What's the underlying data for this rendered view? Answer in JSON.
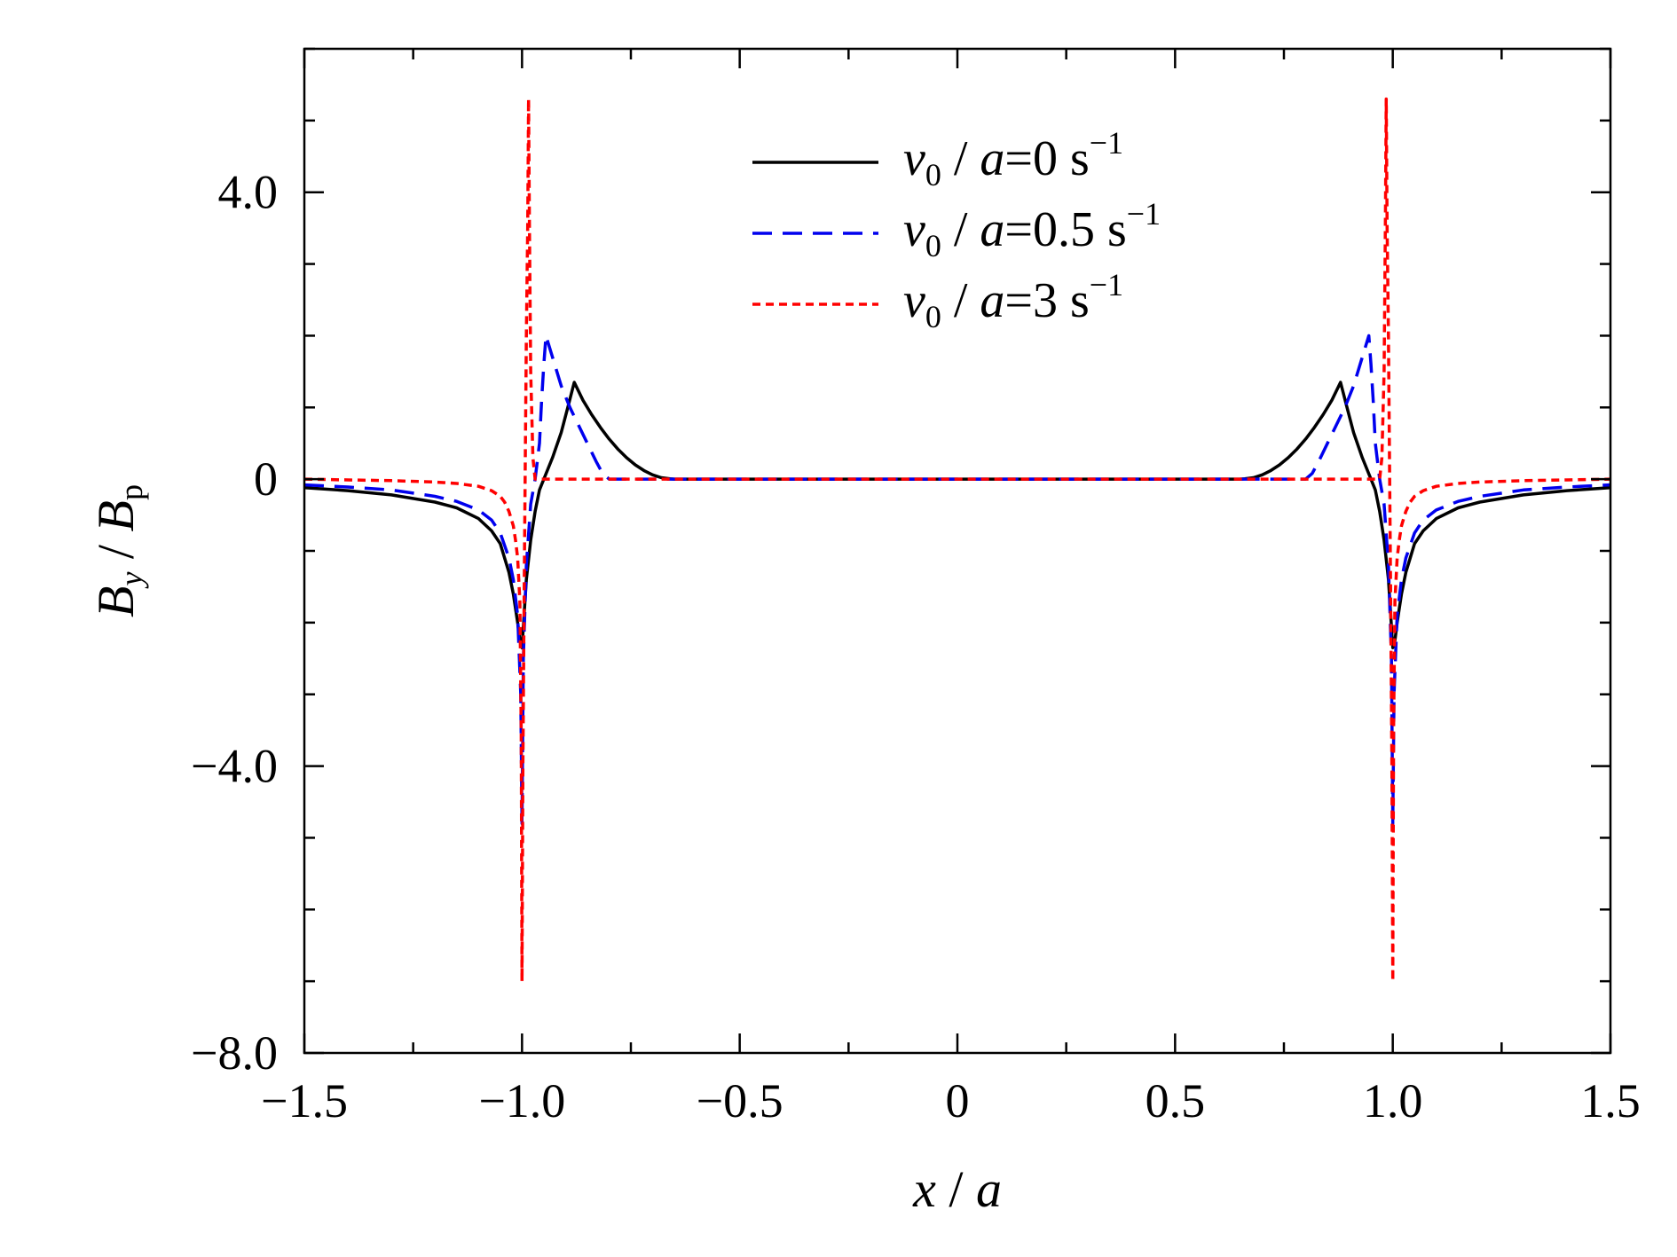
{
  "chart_data": {
    "type": "line",
    "xlabel": {
      "var": "x",
      "sep": " / ",
      "den": "a"
    },
    "ylabel": {
      "var": "B",
      "var_sub": "y",
      "sep": " / ",
      "den": "B",
      "den_sub": "p"
    },
    "xlim": [
      -1.5,
      1.5
    ],
    "ylim": [
      -8.0,
      6.0
    ],
    "x_ticks": [
      {
        "value": -1.5,
        "label": "−1.5"
      },
      {
        "value": -1.0,
        "label": "−1.0"
      },
      {
        "value": -0.5,
        "label": "−0.5"
      },
      {
        "value": 0.0,
        "label": "0"
      },
      {
        "value": 0.5,
        "label": "0.5"
      },
      {
        "value": 1.0,
        "label": "1.0"
      },
      {
        "value": 1.5,
        "label": "1.5"
      }
    ],
    "x_minor_step": 0.25,
    "y_ticks": [
      {
        "value": 4.0,
        "label": "4.0"
      },
      {
        "value": 0.0,
        "label": "0"
      },
      {
        "value": -4.0,
        "label": "−4.0"
      },
      {
        "value": -8.0,
        "label": "−8.0"
      }
    ],
    "y_minor_step": 1.0,
    "grid": false,
    "legend_position": "top-center",
    "series": [
      {
        "name": "v0/a=0 s^-1",
        "legend": {
          "v": "v",
          "v_sub": "0",
          "rest": " / a=",
          "val": "0 s",
          "sup": "−1"
        },
        "color": "#000000",
        "dash": "solid",
        "x": [
          -1.5,
          -1.4,
          -1.3,
          -1.2,
          -1.15,
          -1.1,
          -1.07,
          -1.05,
          -1.03,
          -1.02,
          -1.01,
          -1.005,
          -1.0,
          -0.99,
          -0.98,
          -0.97,
          -0.96,
          -0.95,
          -0.93,
          -0.91,
          -0.895,
          -0.88,
          -0.86,
          -0.84,
          -0.82,
          -0.8,
          -0.78,
          -0.76,
          -0.74,
          -0.72,
          -0.7,
          -0.68,
          -0.66,
          -0.65,
          -0.645,
          0.645,
          0.65,
          0.66,
          0.68,
          0.7,
          0.72,
          0.74,
          0.76,
          0.78,
          0.8,
          0.82,
          0.84,
          0.86,
          0.88,
          0.895,
          0.91,
          0.93,
          0.95,
          0.96,
          0.97,
          0.98,
          0.99,
          1.0,
          1.005,
          1.01,
          1.02,
          1.03,
          1.05,
          1.07,
          1.1,
          1.15,
          1.2,
          1.3,
          1.4,
          1.5
        ],
        "y": [
          -0.12,
          -0.16,
          -0.22,
          -0.32,
          -0.4,
          -0.55,
          -0.72,
          -0.9,
          -1.3,
          -1.6,
          -2.0,
          -2.25,
          -2.35,
          -1.4,
          -0.85,
          -0.45,
          -0.15,
          0.0,
          0.3,
          0.65,
          1.0,
          1.35,
          1.1,
          0.9,
          0.72,
          0.56,
          0.42,
          0.3,
          0.2,
          0.12,
          0.06,
          0.02,
          0.005,
          0.0,
          0.0,
          0.0,
          0.0,
          0.005,
          0.02,
          0.06,
          0.12,
          0.2,
          0.3,
          0.42,
          0.56,
          0.72,
          0.9,
          1.1,
          1.35,
          1.0,
          0.65,
          0.3,
          0.0,
          -0.15,
          -0.45,
          -0.85,
          -1.4,
          -2.35,
          -2.25,
          -2.0,
          -1.6,
          -1.3,
          -0.9,
          -0.72,
          -0.55,
          -0.4,
          -0.32,
          -0.22,
          -0.16,
          -0.12
        ]
      },
      {
        "name": "v0/a=0.5 s^-1",
        "legend": {
          "v": "v",
          "v_sub": "0",
          "rest": " / a=",
          "val": "0.5 s",
          "sup": "−1"
        },
        "color": "#0000ee",
        "dash": "long-dash",
        "x": [
          -1.5,
          -1.4,
          -1.3,
          -1.2,
          -1.15,
          -1.1,
          -1.07,
          -1.05,
          -1.03,
          -1.02,
          -1.01,
          -1.003,
          -1.0,
          -0.997,
          -0.99,
          -0.98,
          -0.97,
          -0.96,
          -0.955,
          -0.95,
          -0.945,
          -0.93,
          -0.91,
          -0.89,
          -0.87,
          -0.85,
          -0.83,
          -0.815,
          -0.8,
          0.8,
          0.815,
          0.83,
          0.85,
          0.87,
          0.89,
          0.91,
          0.93,
          0.945,
          0.95,
          0.955,
          0.96,
          0.97,
          0.98,
          0.99,
          0.997,
          1.0,
          1.003,
          1.01,
          1.02,
          1.03,
          1.05,
          1.07,
          1.1,
          1.15,
          1.2,
          1.3,
          1.4,
          1.5
        ],
        "y": [
          -0.08,
          -0.11,
          -0.15,
          -0.24,
          -0.31,
          -0.43,
          -0.57,
          -0.75,
          -1.1,
          -1.4,
          -1.9,
          -3.0,
          -4.8,
          -2.5,
          -1.2,
          -0.35,
          0.0,
          0.5,
          1.1,
          1.6,
          2.0,
          1.7,
          1.3,
          1.0,
          0.75,
          0.5,
          0.25,
          0.08,
          0.0,
          0.0,
          0.08,
          0.25,
          0.5,
          0.75,
          1.0,
          1.3,
          1.7,
          2.0,
          1.6,
          1.1,
          0.5,
          0.0,
          -0.35,
          -1.2,
          -2.5,
          -4.8,
          -3.0,
          -1.9,
          -1.4,
          -1.1,
          -0.75,
          -0.57,
          -0.43,
          -0.31,
          -0.24,
          -0.15,
          -0.11,
          -0.08
        ]
      },
      {
        "name": "v0/a=3 s^-1",
        "legend": {
          "v": "v",
          "v_sub": "0",
          "rest": " / a=",
          "val": "3 s",
          "sup": "−1"
        },
        "color": "#ff0000",
        "dash": "short-dash",
        "x": [
          -1.5,
          -1.4,
          -1.3,
          -1.2,
          -1.15,
          -1.1,
          -1.07,
          -1.05,
          -1.04,
          -1.03,
          -1.02,
          -1.015,
          -1.01,
          -1.005,
          -1.002,
          -1.0,
          -0.998,
          -0.995,
          -0.99,
          -0.987,
          -0.985,
          -0.983,
          -0.98,
          -0.975,
          -0.97,
          0.97,
          0.975,
          0.98,
          0.983,
          0.985,
          0.987,
          0.99,
          0.995,
          0.998,
          1.0,
          1.002,
          1.005,
          1.01,
          1.015,
          1.02,
          1.03,
          1.04,
          1.05,
          1.07,
          1.1,
          1.15,
          1.2,
          1.3,
          1.4,
          1.5
        ],
        "y": [
          0.0,
          -0.01,
          -0.02,
          -0.04,
          -0.06,
          -0.1,
          -0.16,
          -0.24,
          -0.32,
          -0.45,
          -0.65,
          -0.85,
          -1.1,
          -1.7,
          -3.5,
          -7.0,
          -4.0,
          -1.5,
          2.0,
          3.5,
          5.3,
          3.5,
          1.5,
          0.3,
          0.0,
          0.0,
          0.3,
          1.5,
          3.5,
          5.3,
          3.5,
          2.0,
          -1.5,
          -4.0,
          -7.0,
          -3.5,
          -1.7,
          -1.1,
          -0.85,
          -0.65,
          -0.45,
          -0.32,
          -0.24,
          -0.16,
          -0.1,
          -0.06,
          -0.04,
          -0.02,
          -0.01,
          0.0
        ]
      }
    ]
  }
}
